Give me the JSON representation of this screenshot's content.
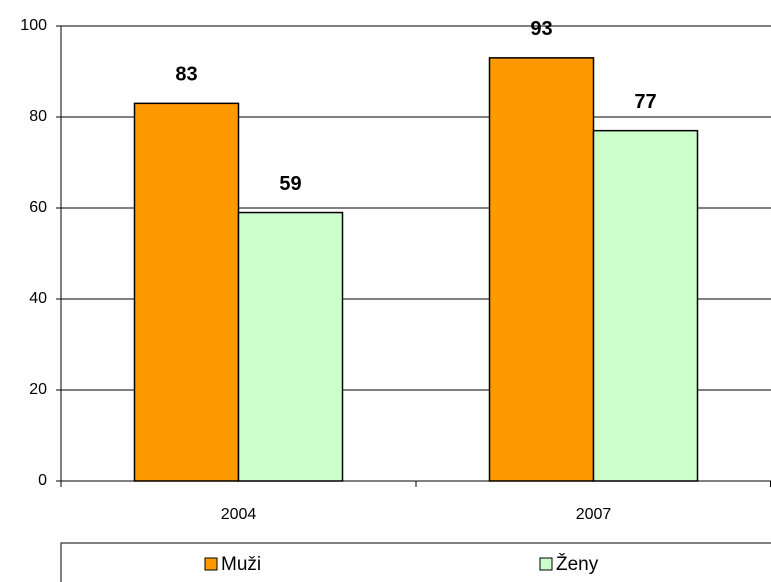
{
  "chart_data": {
    "type": "bar",
    "categories": [
      "2004",
      "2007"
    ],
    "series": [
      {
        "name": "Muži",
        "color": "#ff9900",
        "values": [
          83,
          93
        ]
      },
      {
        "name": "Ženy",
        "color": "#ccffcc",
        "values": [
          59,
          77
        ]
      }
    ],
    "ylim": [
      0,
      100
    ],
    "yticks": [
      0,
      20,
      40,
      60,
      80,
      100
    ],
    "grid": true,
    "legend": "bottom"
  }
}
